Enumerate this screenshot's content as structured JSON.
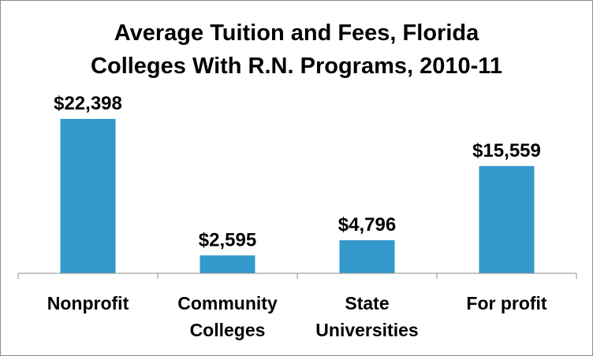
{
  "chart_data": {
    "type": "bar",
    "title_lines": [
      "Average Tuition and Fees, Florida",
      "Colleges With R.N. Programs, 2010-11"
    ],
    "categories": [
      [
        "Nonprofit"
      ],
      [
        "Community",
        "Colleges"
      ],
      [
        "State",
        "Universities"
      ],
      [
        "For profit"
      ]
    ],
    "values": [
      22398,
      2595,
      4796,
      15559
    ],
    "data_labels": [
      "$22,398",
      "$2,595",
      "$4,796",
      "$15,559"
    ],
    "ylim": [
      0,
      22398
    ],
    "grid": false,
    "legend": "none",
    "xlabel": "",
    "ylabel": "",
    "bar_color": "#3399cc",
    "axis_color": "#8c8c8c"
  }
}
